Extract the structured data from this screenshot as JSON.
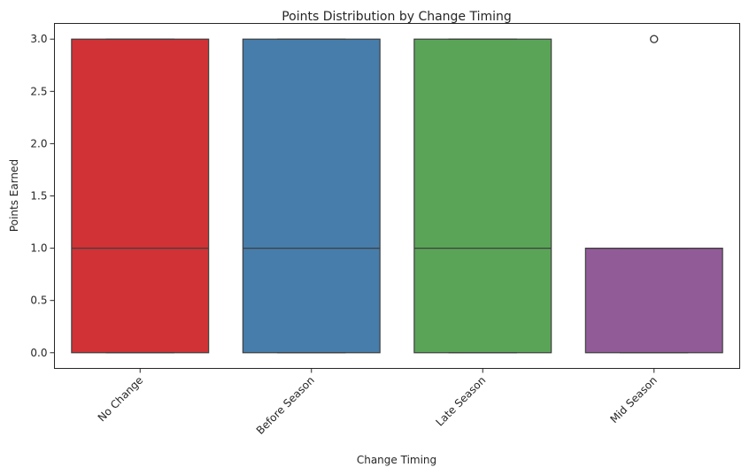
{
  "chart_data": {
    "type": "box",
    "title": "Points Distribution by Change Timing",
    "xlabel": "Change Timing",
    "ylabel": "Points Earned",
    "ylim": [
      -0.15,
      3.15
    ],
    "yticks": [
      "0.0",
      "0.5",
      "1.0",
      "1.5",
      "2.0",
      "2.5",
      "3.0"
    ],
    "grid": false,
    "categories": [
      "No Change",
      "Before Season",
      "Late Season",
      "Mid Season"
    ],
    "series": [
      {
        "min": 0,
        "q1": 0,
        "median": 1,
        "q3": 3,
        "max": 3,
        "outliers": [],
        "color": "#d03236"
      },
      {
        "min": 0,
        "q1": 0,
        "median": 1,
        "q3": 3,
        "max": 3,
        "outliers": [],
        "color": "#467dab"
      },
      {
        "min": 0,
        "q1": 0,
        "median": 1,
        "q3": 3,
        "max": 3,
        "outliers": [],
        "color": "#5aa458"
      },
      {
        "min": 0,
        "q1": 0,
        "median": 1,
        "q3": 1,
        "max": 1,
        "outliers": [
          3
        ],
        "color": "#915b98"
      }
    ]
  }
}
